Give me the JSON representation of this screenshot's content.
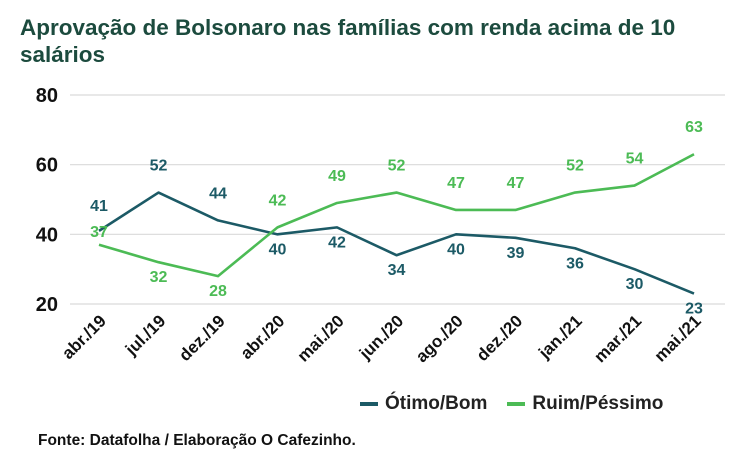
{
  "title": "Aprovação de Bolsonaro nas famílias com renda acima de 10 salários",
  "source": "Fonte: Datafolha / Elaboração O Cafezinho.",
  "colors": {
    "otimo": "#1c5a66",
    "ruim": "#4cbb55",
    "grid": "#d9d9d9",
    "axis_text": "#111111"
  },
  "chart_data": {
    "type": "line",
    "categories": [
      "abr./19",
      "jul./19",
      "dez./19",
      "abr./20",
      "mai./20",
      "jun./20",
      "ago./20",
      "dez./20",
      "jan./21",
      "mar./21",
      "mai./21"
    ],
    "series": [
      {
        "name": "Ótimo/Bom",
        "values": [
          41,
          52,
          44,
          40,
          42,
          34,
          40,
          39,
          36,
          30,
          23
        ]
      },
      {
        "name": "Ruim/Péssimo",
        "values": [
          37,
          32,
          28,
          42,
          49,
          52,
          47,
          47,
          52,
          54,
          63
        ]
      }
    ],
    "yticks": [
      20,
      40,
      60,
      80
    ],
    "ylim": [
      20,
      80
    ],
    "grid": true,
    "legend_position": "bottom-right"
  }
}
